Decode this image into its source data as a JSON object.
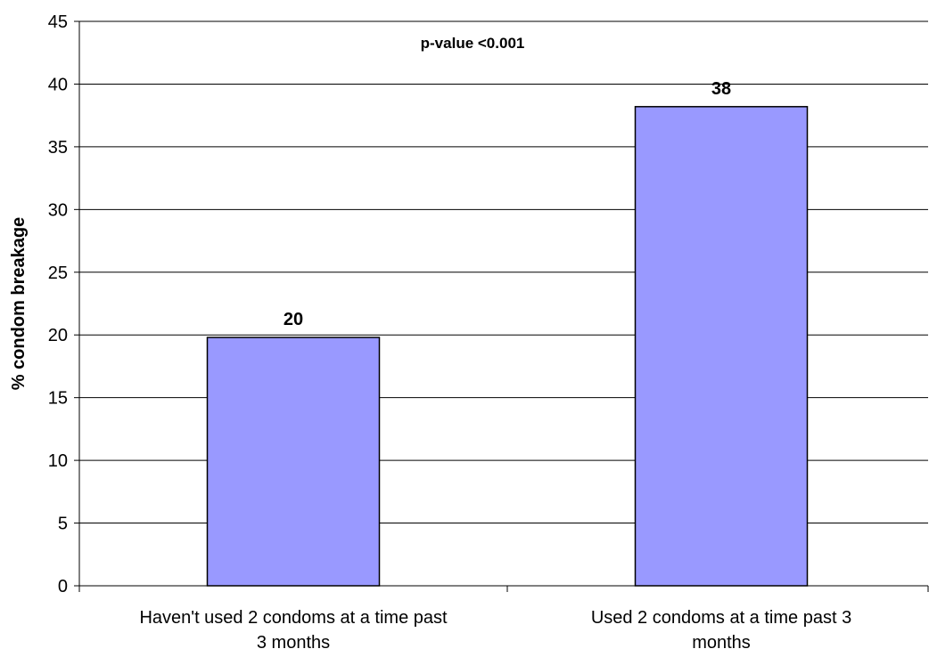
{
  "chart_data": {
    "type": "bar",
    "title": "",
    "annotation": "p-value <0.001",
    "ylabel": "% condom breakage",
    "xlabel": "",
    "ylim": [
      0,
      45
    ],
    "yticks": [
      0,
      5,
      10,
      15,
      20,
      25,
      30,
      35,
      40,
      45
    ],
    "grid": true,
    "legend": "none",
    "categories": [
      [
        "Haven't used 2 condoms at a time past",
        "3 months"
      ],
      [
        "Used 2 condoms at a time past 3",
        "months"
      ]
    ],
    "values": [
      19.8,
      38.2
    ],
    "data_labels": [
      "20",
      "38"
    ],
    "bar_color": "#9999ff",
    "bar_edge_color": "#000000"
  }
}
